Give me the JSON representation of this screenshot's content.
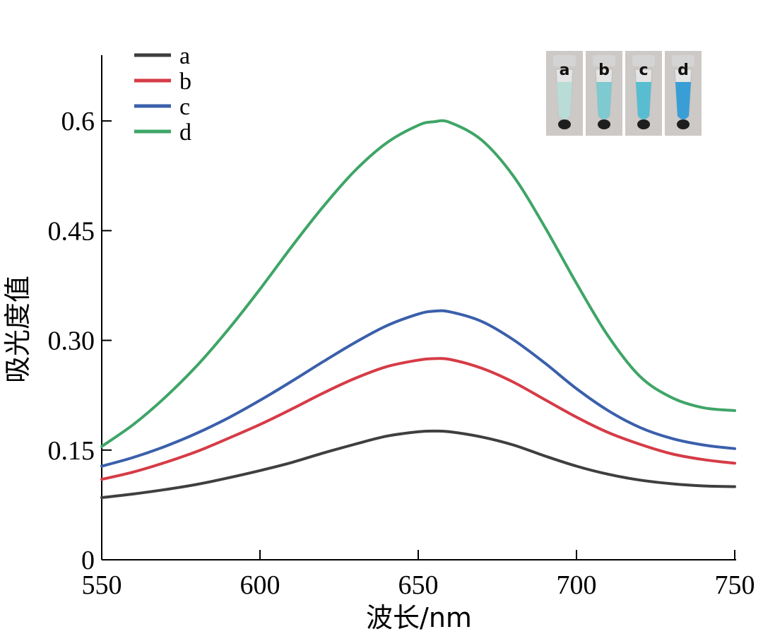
{
  "chart_data": {
    "type": "line",
    "title": "",
    "xlabel": "波长/nm",
    "ylabel": "吸光度值",
    "xlim": [
      550,
      750
    ],
    "ylim": [
      0,
      0.69
    ],
    "xticks": [
      550,
      600,
      650,
      700,
      750
    ],
    "xtick_labels": [
      "550",
      "600",
      "650",
      "700",
      "750"
    ],
    "yticks": [
      0,
      0.15,
      0.3,
      0.45,
      0.6
    ],
    "ytick_labels": [
      "0",
      "0.15",
      "0.30",
      "0.45",
      "0.6"
    ],
    "grid": false,
    "legend_position": "top-left",
    "x": [
      550,
      560,
      570,
      580,
      590,
      600,
      610,
      620,
      630,
      640,
      650,
      655,
      660,
      670,
      680,
      690,
      700,
      710,
      720,
      730,
      740,
      750
    ],
    "series": [
      {
        "name": "a",
        "color": "#3f3f3f",
        "values": [
          0.085,
          0.09,
          0.096,
          0.103,
          0.112,
          0.122,
          0.133,
          0.146,
          0.158,
          0.169,
          0.175,
          0.176,
          0.175,
          0.168,
          0.157,
          0.142,
          0.128,
          0.117,
          0.109,
          0.104,
          0.101,
          0.1
        ]
      },
      {
        "name": "b",
        "color": "#d63b46",
        "values": [
          0.11,
          0.12,
          0.133,
          0.148,
          0.166,
          0.185,
          0.206,
          0.228,
          0.248,
          0.264,
          0.273,
          0.275,
          0.274,
          0.262,
          0.243,
          0.219,
          0.195,
          0.174,
          0.158,
          0.145,
          0.137,
          0.132
        ]
      },
      {
        "name": "c",
        "color": "#3a5fab",
        "values": [
          0.128,
          0.14,
          0.155,
          0.173,
          0.194,
          0.218,
          0.244,
          0.271,
          0.297,
          0.32,
          0.336,
          0.34,
          0.339,
          0.326,
          0.301,
          0.269,
          0.234,
          0.204,
          0.181,
          0.166,
          0.157,
          0.152
        ]
      },
      {
        "name": "d",
        "color": "#3ea567",
        "values": [
          0.155,
          0.185,
          0.222,
          0.265,
          0.315,
          0.37,
          0.428,
          0.483,
          0.532,
          0.57,
          0.594,
          0.599,
          0.598,
          0.574,
          0.525,
          0.455,
          0.378,
          0.306,
          0.251,
          0.222,
          0.208,
          0.204
        ]
      }
    ]
  },
  "inset": {
    "tubes": [
      {
        "label": "a",
        "liquid_color": "#b9dcd6",
        "cap_color": "#d6d6d6"
      },
      {
        "label": "b",
        "liquid_color": "#7fc9d0",
        "cap_color": "#d6d6d6"
      },
      {
        "label": "c",
        "liquid_color": "#58bdd0",
        "cap_color": "#d6d6d6"
      },
      {
        "label": "d",
        "liquid_color": "#3a9ed6",
        "cap_color": "#d6d6d6"
      }
    ]
  }
}
